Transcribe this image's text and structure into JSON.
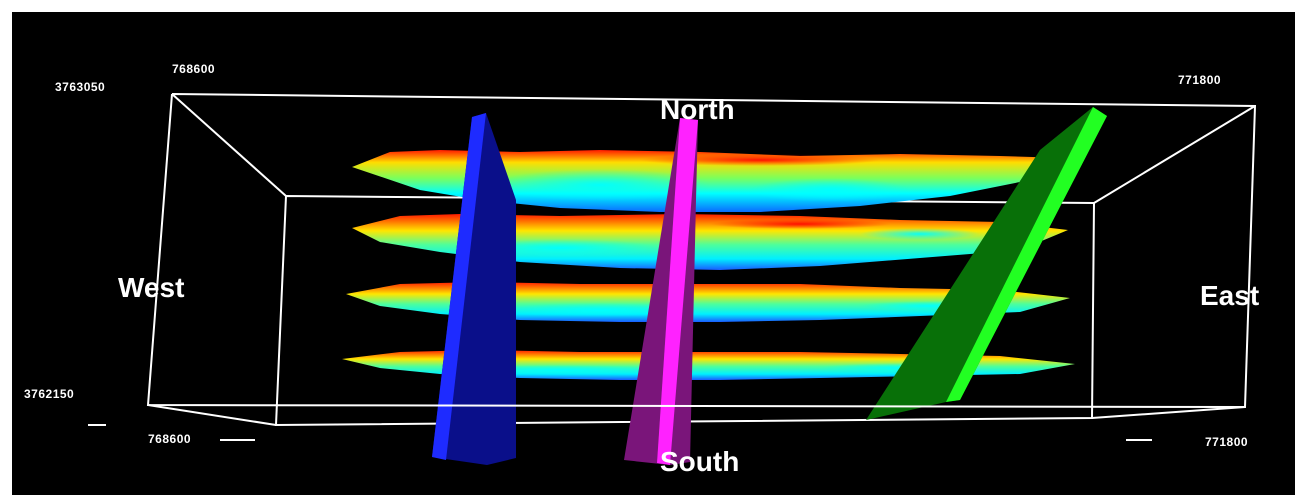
{
  "colors": {
    "background": "#000000",
    "frame": "#ffffff",
    "rainbow": [
      "#ff0000",
      "#ffff00",
      "#00ff66",
      "#00ffff",
      "#0033ff"
    ],
    "blue_plane": "#1e2bff",
    "magenta_plane": "#ff22ff",
    "green_plane": "#22ff22"
  },
  "coordinates": {
    "north_easting_west": "768600",
    "north_easting_east": "771800",
    "north_northing": "3763050",
    "south_northing": "3762150",
    "south_easting_west": "768600",
    "south_easting_east": "771800"
  },
  "directions": {
    "north": "North",
    "south": "South",
    "west": "West",
    "east": "East"
  }
}
